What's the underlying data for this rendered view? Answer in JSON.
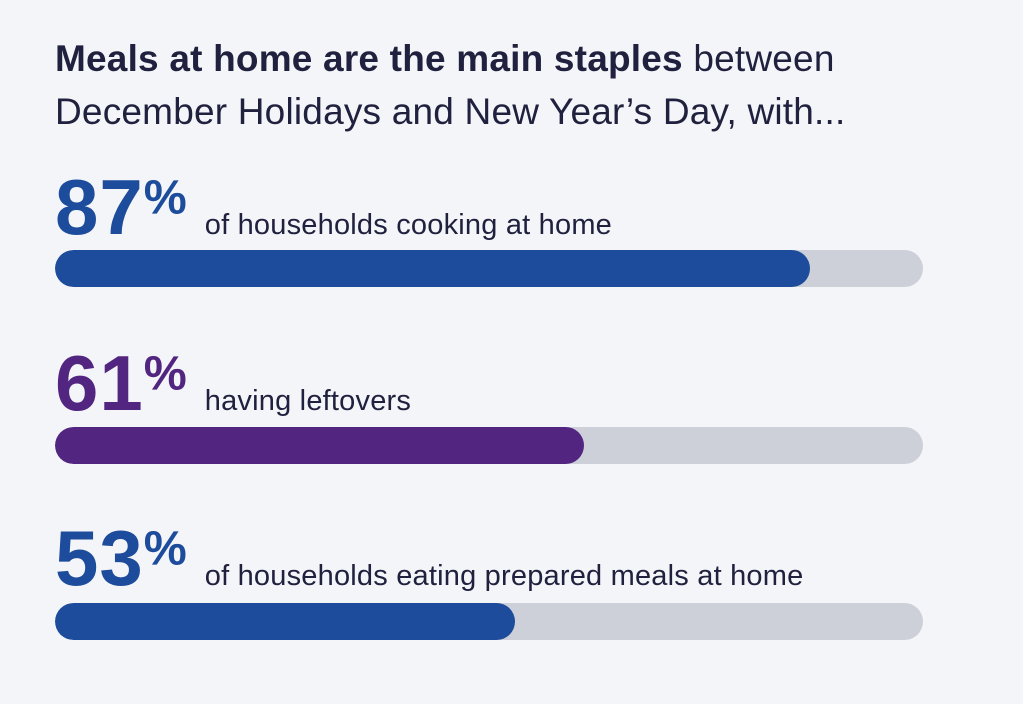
{
  "background_color": "#F4F5F8",
  "track_color": "#CDD0D8",
  "text_color": "#20213E",
  "accent_blue": "#1C4C9B",
  "accent_purple": "#522581",
  "title": {
    "bold": "Meals at home are the main staples",
    "regular_line1": "between",
    "line2": "December Holidays and New Year’s Day, with..."
  },
  "stats": [
    {
      "value": "87",
      "unit": "%",
      "label": "of households cooking at home",
      "percent": 87,
      "color": "#1C4C9B"
    },
    {
      "value": "61",
      "unit": "%",
      "label": "having leftovers",
      "percent": 61,
      "color": "#522581"
    },
    {
      "value": "53",
      "unit": "%",
      "label": "of households eating prepared meals at home",
      "percent": 53,
      "color": "#1C4C9B"
    }
  ],
  "chart_data": {
    "type": "bar",
    "orientation": "horizontal",
    "title": "Meals at home are the main staples between December Holidays and New Year’s Day, with...",
    "categories": [
      "of households cooking at home",
      "having leftovers",
      "of households eating prepared meals at home"
    ],
    "values": [
      87,
      61,
      53
    ],
    "value_labels": [
      "87%",
      "61%",
      "53%"
    ],
    "bar_colors": [
      "#1C4C9B",
      "#522581",
      "#1C4C9B"
    ],
    "track_color": "#CDD0D8",
    "xlabel": "",
    "ylabel": "",
    "xlim": [
      0,
      100
    ],
    "grid": false,
    "legend": false
  }
}
